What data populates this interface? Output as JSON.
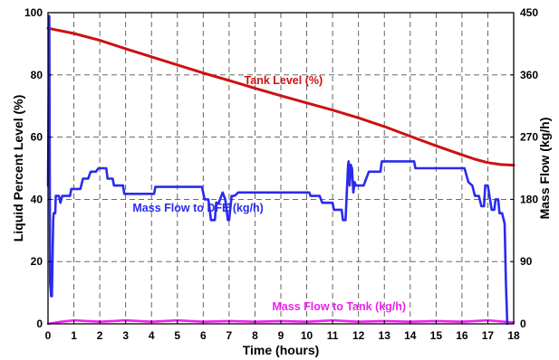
{
  "chart_data": {
    "type": "line",
    "xlabel": "Time (hours)",
    "ylabel_left": "Liquid Percent Level (%)",
    "ylabel_right": "Mass Flow (kg/h)",
    "xlim": [
      0,
      18
    ],
    "ylim_left": [
      0,
      100
    ],
    "ylim_right": [
      0,
      450
    ],
    "x_ticks": [
      "0",
      "1",
      "2",
      "3",
      "4",
      "5",
      "6",
      "7",
      "8",
      "9",
      "10",
      "11",
      "12",
      "13",
      "14",
      "15",
      "16",
      "17",
      "18"
    ],
    "y_left_ticks": [
      "0",
      "20",
      "40",
      "60",
      "80",
      "100"
    ],
    "y_right_ticks": [
      "0",
      "90",
      "180",
      "270",
      "360",
      "450"
    ],
    "grid": true,
    "series": [
      {
        "name": "Tank Level (%)",
        "axis": "left",
        "color": "#cc1111",
        "label_at": [
          9.1,
          77
        ],
        "x": [
          0,
          1,
          2,
          3,
          4,
          5,
          6,
          7,
          8,
          9,
          10,
          11,
          12,
          13,
          14,
          15,
          16,
          16.5,
          17,
          17.5,
          18
        ],
        "y": [
          95,
          93.3,
          91.1,
          88.4,
          85.8,
          83.2,
          80.6,
          78.2,
          75.7,
          73.3,
          71,
          68.7,
          66.2,
          63.4,
          60.3,
          57.2,
          54.3,
          52.9,
          51.8,
          51.2,
          51
        ]
      },
      {
        "name": "Mass Flow to DFE (kg/h)",
        "axis": "right",
        "color": "#2a2aee",
        "label_at": [
          5.8,
          36
        ],
        "x": [
          0,
          0.05,
          0.08,
          0.12,
          0.15,
          0.2,
          0.22,
          0.28,
          0.3,
          0.42,
          0.48,
          0.55,
          0.85,
          0.9,
          1.25,
          1.35,
          1.55,
          1.65,
          1.85,
          1.95,
          2.25,
          2.3,
          2.5,
          2.55,
          2.9,
          2.95,
          4.1,
          4.15,
          5.95,
          6.05,
          6.2,
          6.3,
          6.45,
          6.5,
          6.6,
          6.65,
          6.7,
          6.75,
          6.85,
          6.95,
          7.0,
          7.1,
          7.2,
          7.3,
          7.35,
          7.4,
          10.1,
          10.15,
          10.5,
          10.6,
          11.0,
          11.05,
          11.35,
          11.4,
          11.5,
          11.55,
          11.6,
          11.62,
          11.66,
          11.7,
          11.75,
          11.8,
          11.85,
          11.9,
          12.2,
          12.3,
          12.35,
          12.4,
          12.85,
          12.9,
          14.15,
          14.2,
          16.1,
          16.25,
          16.4,
          16.5,
          16.65,
          16.75,
          16.85,
          16.9,
          17.0,
          17.15,
          17.25,
          17.3,
          17.4,
          17.45,
          17.55,
          17.65,
          17.7,
          17.75
        ],
        "y": [
          200,
          445,
          60,
          40,
          40,
          150,
          160,
          160,
          185,
          185,
          175,
          185,
          185,
          195,
          195,
          210,
          210,
          220,
          220,
          225,
          225,
          210,
          210,
          200,
          200,
          188,
          188,
          198,
          198,
          180,
          180,
          150,
          150,
          175,
          175,
          180,
          185,
          190,
          180,
          150,
          150,
          185,
          185,
          188,
          190,
          190,
          190,
          185,
          185,
          175,
          175,
          165,
          165,
          150,
          150,
          190,
          230,
          235,
          200,
          230,
          225,
          190,
          205,
          200,
          200,
          210,
          215,
          220,
          220,
          235,
          235,
          225,
          225,
          205,
          200,
          185,
          185,
          170,
          170,
          200,
          200,
          165,
          165,
          180,
          180,
          160,
          160,
          145,
          60,
          0
        ]
      },
      {
        "name": "Mass Flow to Tank (kg/h)",
        "axis": "right",
        "color": "#ee22ee",
        "label_at": [
          11.25,
          4.4
        ],
        "x": [
          0,
          0.5,
          1,
          1.5,
          2,
          3,
          4,
          5,
          6,
          7,
          8,
          9,
          10,
          11,
          12,
          13,
          14,
          15,
          16,
          17,
          18
        ],
        "y": [
          0,
          3,
          5,
          4,
          3,
          5,
          3,
          5,
          3,
          4,
          3,
          4,
          3,
          5,
          3,
          4,
          3,
          4,
          3,
          5,
          2
        ]
      }
    ]
  }
}
